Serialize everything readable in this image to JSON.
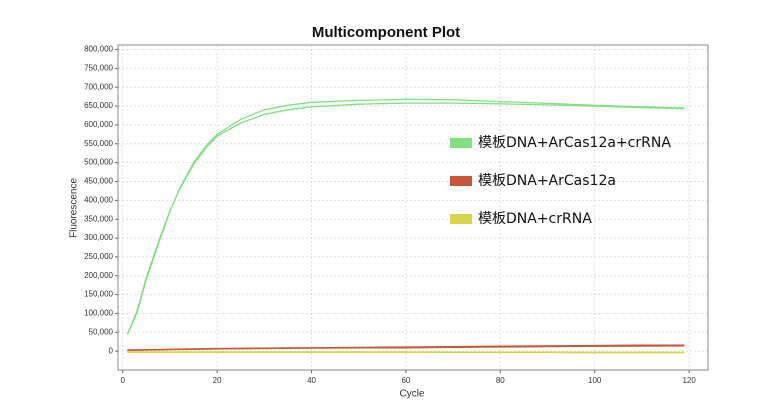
{
  "chart_data": {
    "type": "line",
    "title": "Multicomponent Plot",
    "x_label": "Cycle",
    "y_label": "Fluorescence",
    "x": [
      1,
      3,
      5,
      8,
      10,
      12,
      15,
      18,
      20,
      25,
      30,
      35,
      40,
      50,
      60,
      70,
      80,
      90,
      100,
      110,
      119
    ],
    "xlim": [
      -1,
      124
    ],
    "xticks": [
      0,
      20,
      40,
      60,
      80,
      100,
      120
    ],
    "ylim": [
      -50000,
      812000
    ],
    "yticks": [
      0,
      {
        "value": 50000,
        "label": "50,000"
      },
      {
        "value": 100000,
        "label": "100,000"
      },
      {
        "value": 150000,
        "label": "150,000"
      },
      {
        "value": 200000,
        "label": "200,000"
      },
      {
        "value": 250000,
        "label": "250,000"
      },
      {
        "value": 300000,
        "label": "300,000"
      },
      {
        "value": 350000,
        "label": "350,000"
      },
      {
        "value": 400000,
        "label": "400,000"
      },
      {
        "value": 450000,
        "label": "450,000"
      },
      {
        "value": 500000,
        "label": "500,000"
      },
      {
        "value": 550000,
        "label": "550,000"
      },
      {
        "value": 600000,
        "label": "600,000"
      },
      {
        "value": 650000,
        "label": "650,000"
      },
      {
        "value": 700000,
        "label": "700,000"
      },
      {
        "value": 750000,
        "label": "750,000"
      },
      {
        "value": 800000,
        "label": "800,000"
      }
    ],
    "grid": true,
    "legend": "right",
    "series": [
      {
        "name": "模板DNA+ArCas12a+crRNA",
        "color": "#82e082",
        "replicates": [
          {
            "values": [
              45000,
              100000,
              190000,
              300000,
              370000,
              430000,
              500000,
              550000,
              575000,
              615000,
              640000,
              652000,
              660000,
              665000,
              668000,
              667000,
              662000,
              657000,
              652000,
              648000,
              645000
            ]
          },
          {
            "values": [
              45000,
              105000,
              195000,
              305000,
              372000,
              428000,
              495000,
              545000,
              570000,
              605000,
              628000,
              640000,
              648000,
              655000,
              658000,
              658000,
              656000,
              653000,
              650000,
              646000,
              643000
            ]
          }
        ]
      },
      {
        "name": "模板DNA+ArCas12a",
        "color": "#c8553a",
        "replicates": [
          {
            "values": [
              3000,
              3500,
              4000,
              4500,
              5000,
              5500,
              6000,
              6500,
              7000,
              7500,
              8000,
              8500,
              9000,
              10000,
              11000,
              12000,
              13000,
              14000,
              15000,
              16000,
              16000
            ]
          },
          {
            "values": [
              2000,
              2500,
              3000,
              3500,
              4000,
              4500,
              5000,
              5500,
              6000,
              6500,
              7000,
              7500,
              8000,
              8500,
              9000,
              10000,
              11000,
              12000,
              13000,
              13500,
              14000
            ]
          }
        ]
      },
      {
        "name": "模板DNA+crRNA",
        "color": "#d8d548",
        "replicates": [
          {
            "values": [
              -2000,
              -2000,
              -2000,
              -2000,
              -2000,
              -2000,
              -2000,
              -2000,
              -2000,
              -2000,
              -2000,
              -2000,
              -2000,
              -2000,
              -2000,
              -2500,
              -2500,
              -2500,
              -3000,
              -3000,
              -3000
            ]
          },
          {
            "values": [
              -3000,
              -3000,
              -3000,
              -3000,
              -3000,
              -3000,
              -3000,
              -3000,
              -3000,
              -3000,
              -3000,
              -3000,
              -3000,
              -3000,
              -3000,
              -3500,
              -3500,
              -3500,
              -4000,
              -4000,
              -4000
            ]
          }
        ]
      }
    ]
  }
}
